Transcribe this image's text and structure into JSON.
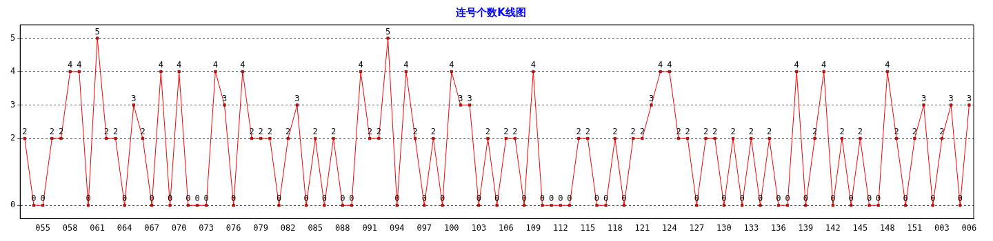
{
  "chart_data": {
    "type": "line",
    "title": "连号个数K线图",
    "categories": [
      null,
      null,
      "055",
      null,
      null,
      "058",
      null,
      null,
      "061",
      null,
      null,
      "064",
      null,
      null,
      "067",
      null,
      null,
      "070",
      null,
      null,
      "073",
      null,
      null,
      "076",
      null,
      null,
      "079",
      null,
      null,
      "082",
      null,
      null,
      "085",
      null,
      null,
      "088",
      null,
      null,
      "091",
      null,
      null,
      "094",
      null,
      null,
      "097",
      null,
      null,
      "100",
      null,
      null,
      "103",
      null,
      null,
      "106",
      null,
      null,
      "109",
      null,
      null,
      "112",
      null,
      null,
      "115",
      null,
      null,
      "118",
      null,
      null,
      "121",
      null,
      null,
      "124",
      null,
      null,
      "127",
      null,
      null,
      "130",
      null,
      null,
      "133",
      null,
      null,
      "136",
      null,
      null,
      "139",
      null,
      null,
      "142",
      null,
      null,
      "145",
      null,
      null,
      "148",
      null,
      null,
      "151",
      null,
      null,
      "003",
      null,
      null,
      "006"
    ],
    "series": [
      {
        "color": "#ff0000",
        "values": [
          2,
          0,
          0,
          2,
          2,
          4,
          4,
          0,
          5,
          2,
          2,
          0,
          3,
          2,
          0,
          4,
          0,
          4,
          0,
          0,
          0,
          4,
          3,
          0,
          4,
          2,
          2,
          2,
          0,
          2,
          3,
          0,
          2,
          0,
          2,
          0,
          0,
          4,
          2,
          2,
          5,
          0,
          4,
          2,
          0,
          2,
          0,
          4,
          3,
          3,
          0,
          2,
          0,
          2,
          2,
          0,
          4,
          0,
          0,
          0,
          0,
          2,
          2,
          0,
          0,
          2,
          0,
          2,
          2,
          3,
          4,
          4,
          2,
          2,
          0,
          2,
          2,
          0,
          2,
          0,
          2,
          0,
          2,
          0,
          0,
          4,
          0,
          2,
          4,
          0,
          2,
          0,
          2,
          0,
          0,
          4,
          2,
          0,
          2,
          3,
          0,
          2,
          3,
          0,
          3
        ]
      }
    ],
    "ylim": [
      -0.4,
      5.4
    ],
    "yticks": [
      0,
      2,
      3,
      4,
      5
    ],
    "grid": "y",
    "marker": "square",
    "line_style": "solid",
    "data_labels": true,
    "legend": false
  }
}
